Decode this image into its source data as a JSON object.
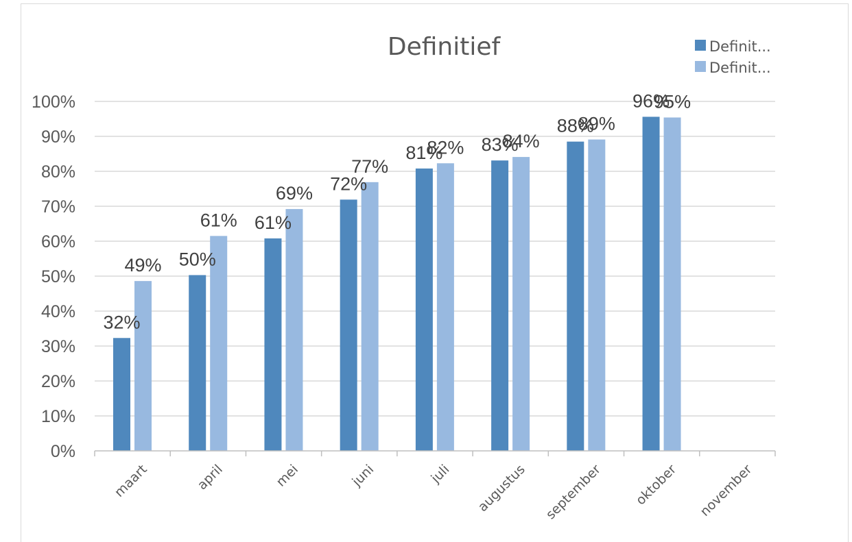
{
  "chart_data": {
    "type": "bar",
    "title": "Definitief",
    "categories": [
      "maart",
      "april",
      "mei",
      "juni",
      "juli",
      "augustus",
      "september",
      "oktober",
      "november"
    ],
    "series": [
      {
        "name": "Definit...",
        "color": "#4f88bd",
        "values": [
          32.3,
          50.3,
          60.8,
          71.9,
          80.8,
          83.1,
          88.5,
          95.6,
          null
        ],
        "labels": [
          "32%",
          "50%",
          "61%",
          "72%",
          "81%",
          "83%",
          "88%",
          "96%",
          ""
        ]
      },
      {
        "name": "Definit...",
        "color": "#98b9e0",
        "values": [
          48.6,
          61.5,
          69.2,
          76.9,
          82.3,
          84.1,
          89.1,
          95.4,
          null
        ],
        "labels": [
          "49%",
          "61%",
          "69%",
          "77%",
          "82%",
          "84%",
          "89%",
          "95%",
          ""
        ]
      }
    ],
    "y_ticks": [
      "0%",
      "10%",
      "20%",
      "30%",
      "40%",
      "50%",
      "60%",
      "70%",
      "80%",
      "90%",
      "100%"
    ],
    "ylim": [
      0,
      100
    ],
    "grid": true,
    "legend_position": "top-right"
  }
}
